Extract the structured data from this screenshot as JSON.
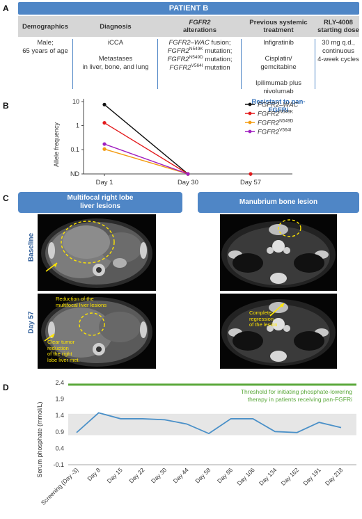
{
  "panel_a": {
    "letter": "A",
    "patient": "PATIENT B",
    "headers": {
      "demographics": "Demographics",
      "diagnosis": "Diagnosis",
      "fgfr2": "FGFR2",
      "alterations": "alterations",
      "previous1": "Previous systemic",
      "previous2": "treatment",
      "rly1": "RLY-4008",
      "rly2": "starting dose"
    },
    "demographics": [
      "Male;",
      "65 years of age"
    ],
    "diagnosis": [
      "iCCA",
      "Metastases",
      "in liver, bone, and lung"
    ],
    "alterations": {
      "wac": "FGFR2–WAC",
      "wac_suffix": " fusion;",
      "gene": "FGFR2",
      "n549k": "N549K",
      "n549d": "N549D",
      "v564i": "V564I",
      "mutation_semi": " mutation;",
      "mutation": " mutation"
    },
    "previous": [
      "Infigratinib",
      "Cisplatin/",
      "gemcitabine",
      "Ipilimumab plus",
      "nivolumab"
    ],
    "resistant": "Resistant to pan-FGFRi",
    "rly_dose": [
      "30 mg q.d.,",
      "continuous",
      "4-week cycles"
    ]
  },
  "chart_b": {
    "letter": "B",
    "gene": "FGFR2",
    "chart_data": {
      "type": "line",
      "x": [
        "Day 1",
        "Day 30",
        "Day 57"
      ],
      "ylabel": "Allele frequency",
      "yscale": "log",
      "yticks": [
        "10",
        "1",
        "0.1",
        "ND"
      ],
      "series": [
        {
          "name": "FGFR2–WAC",
          "color": "#111111",
          "values": [
            7.5,
            "ND",
            null
          ]
        },
        {
          "name": "FGFR2 N549K",
          "color": "#e31a1c",
          "values": [
            1.3,
            "ND",
            "ND"
          ]
        },
        {
          "name": "FGFR2 N549D",
          "color": "#f39c12",
          "values": [
            0.105,
            "ND",
            null
          ]
        },
        {
          "name": "FGFR2 V564I",
          "color": "#a020c0",
          "values": [
            0.17,
            "ND",
            null
          ]
        }
      ]
    },
    "legend": [
      {
        "gene": "FGFR2–WAC",
        "sup": "",
        "color": "#111111"
      },
      {
        "gene": "FGFR2",
        "sup": "N549K",
        "color": "#e31a1c"
      },
      {
        "gene": "FGFR2",
        "sup": "N549D",
        "color": "#f39c12"
      },
      {
        "gene": "FGFR2",
        "sup": "V564I",
        "color": "#a020c0"
      }
    ]
  },
  "panel_c": {
    "letter": "C",
    "left_header": [
      "Multifocal right lobe",
      "liver lesions"
    ],
    "right_header": "Manubrium bone lesion",
    "row_baseline": "Baseline",
    "row_day57": "Day 57",
    "ann_liver_reduction": [
      "Reduction of the",
      "multifocal liver lesions"
    ],
    "ann_tumor_reduction": [
      "Clear tumor",
      "reduction",
      "of the right",
      "lobe liver met."
    ],
    "ann_complete": [
      "Complete",
      "regression",
      "of the lesion"
    ]
  },
  "chart_d": {
    "letter": "D",
    "threshold_text": [
      "Threshold for initiating phosphate-lowering",
      "therapy in patients receiving pan-FGFRi"
    ],
    "threshold_color": "#5aa83a",
    "line_color": "#4a90c8",
    "chart_data": {
      "type": "line",
      "x": [
        "Screening (Day -3)",
        "Day 8",
        "Day 15",
        "Day 22",
        "Day 30",
        "Day 44",
        "Day 58",
        "Day 86",
        "Day 106",
        "Day 134",
        "Day 162",
        "Day 191",
        "Day 218"
      ],
      "values": [
        0.88,
        1.48,
        1.3,
        1.3,
        1.27,
        1.14,
        0.85,
        1.3,
        1.3,
        0.91,
        0.88,
        1.19,
        1.03
      ],
      "threshold": 2.34,
      "normal_range": [
        0.8,
        1.45
      ],
      "ylabel": "Serum phosphate (mmol/L)",
      "yticks": [
        "2.4",
        "1.9",
        "1.4",
        "0.9",
        "0.4",
        "-0.1"
      ],
      "ylim": [
        -0.1,
        2.4
      ]
    }
  }
}
